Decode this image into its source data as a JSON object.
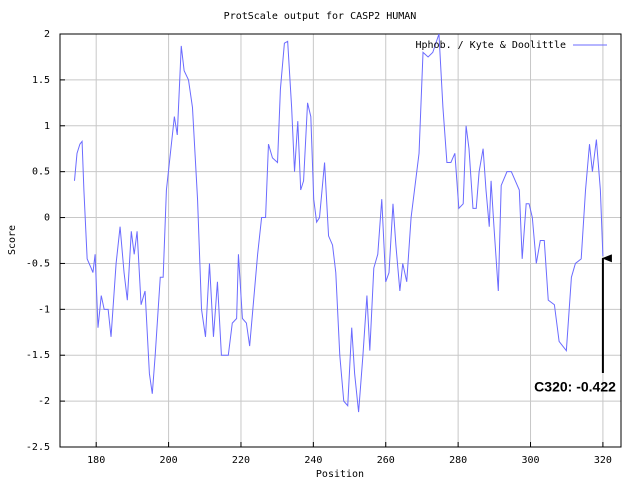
{
  "chart_data": {
    "type": "line",
    "title": "ProtScale output for CASP2 HUMAN",
    "xlabel": "Position",
    "ylabel": "Score",
    "annotation": "C320: -0.422",
    "legend": "upper right",
    "grid": true,
    "xlim": [
      170,
      325
    ],
    "ylim": [
      -2.5,
      2
    ],
    "xticks": [
      180,
      200,
      220,
      240,
      260,
      280,
      300,
      320
    ],
    "yticks": [
      2,
      1.5,
      1,
      0.5,
      0,
      -0.5,
      -1,
      -1.5,
      -2,
      -2.5
    ],
    "x": [
      174,
      174.7,
      175.5,
      176.1,
      176.6,
      177.5,
      178.6,
      179.1,
      179.7,
      180.5,
      181.4,
      182.2,
      183.3,
      184.1,
      185.5,
      186.6,
      187.7,
      188.6,
      189.7,
      190.5,
      191.3,
      192.4,
      193.5,
      194.7,
      195.5,
      196.3,
      197.7,
      198.5,
      199.4,
      201.6,
      202.4,
      203.5,
      204.3,
      205.5,
      206.6,
      208,
      209.1,
      210.2,
      211.3,
      212.4,
      213.5,
      214.6,
      216.5,
      217.6,
      218.8,
      219.3,
      220.4,
      221.5,
      222.4,
      223.5,
      224.6,
      225.7,
      226.8,
      227.6,
      228.7,
      230.1,
      230.9,
      232,
      232.9,
      234,
      234.8,
      235.7,
      236.5,
      237.3,
      238.4,
      239.3,
      240.1,
      240.9,
      241.7,
      243.1,
      244.2,
      245.3,
      246.2,
      247.3,
      248.4,
      249.5,
      250.6,
      251.4,
      252.5,
      253.7,
      254.8,
      255.6,
      256.7,
      257.8,
      258.9,
      260,
      260.9,
      262,
      262.8,
      263.9,
      264.7,
      265.8,
      267,
      269.2,
      270.3,
      271.7,
      273,
      274.7,
      275.8,
      276.9,
      278,
      279.1,
      280.2,
      281.4,
      282.2,
      283,
      284.1,
      285,
      285.8,
      286.9,
      287.7,
      288.6,
      289.1,
      289.9,
      291.1,
      291.9,
      293.5,
      294.7,
      295.8,
      296.9,
      297.7,
      298.8,
      299.6,
      300.5,
      301.6,
      302.7,
      303.8,
      304.9,
      306.6,
      307.9,
      309.9,
      311.3,
      312.4,
      314,
      315.2,
      316.3,
      317.1,
      318.2,
      319.3,
      320
    ],
    "series": [
      {
        "name": "Hphob. / Kyte & Doolittle",
        "color": "#6b6bff",
        "values": [
          0.4,
          0.7,
          0.8,
          0.83,
          0.3,
          -0.45,
          -0.55,
          -0.6,
          -0.4,
          -1.2,
          -0.85,
          -1,
          -1,
          -1.3,
          -0.5,
          -0.1,
          -0.6,
          -0.9,
          -0.15,
          -0.4,
          -0.15,
          -0.95,
          -0.8,
          -1.7,
          -1.92,
          -1.5,
          -0.65,
          -0.65,
          0.3,
          1.1,
          0.9,
          1.87,
          1.6,
          1.5,
          1.2,
          0.2,
          -1,
          -1.3,
          -0.5,
          -1.3,
          -0.7,
          -1.5,
          -1.5,
          -1.15,
          -1.1,
          -0.4,
          -1.1,
          -1.15,
          -1.4,
          -0.9,
          -0.4,
          0,
          0,
          0.8,
          0.65,
          0.6,
          1.4,
          1.9,
          1.92,
          1.2,
          0.5,
          1.05,
          0.3,
          0.4,
          1.25,
          1.1,
          0.2,
          -0.05,
          0,
          0.6,
          -0.2,
          -0.3,
          -0.6,
          -1.5,
          -2,
          -2.05,
          -1.2,
          -1.7,
          -2.12,
          -1.5,
          -0.85,
          -1.45,
          -0.55,
          -0.4,
          0.2,
          -0.7,
          -0.6,
          0.15,
          -0.3,
          -0.8,
          -0.5,
          -0.7,
          0,
          0.7,
          1.8,
          1.75,
          1.8,
          2,
          1.2,
          0.6,
          0.6,
          0.7,
          0.1,
          0.15,
          1,
          0.75,
          0.1,
          0.1,
          0.5,
          0.75,
          0.3,
          -0.1,
          0.4,
          -0.1,
          -0.8,
          0.35,
          0.5,
          0.5,
          0.4,
          0.3,
          -0.45,
          0.15,
          0.15,
          0,
          -0.5,
          -0.25,
          -0.25,
          -0.9,
          -0.95,
          -1.35,
          -1.45,
          -0.65,
          -0.5,
          -0.45,
          0.3,
          0.8,
          0.5,
          0.85,
          0.3,
          -0.422
        ]
      }
    ]
  }
}
